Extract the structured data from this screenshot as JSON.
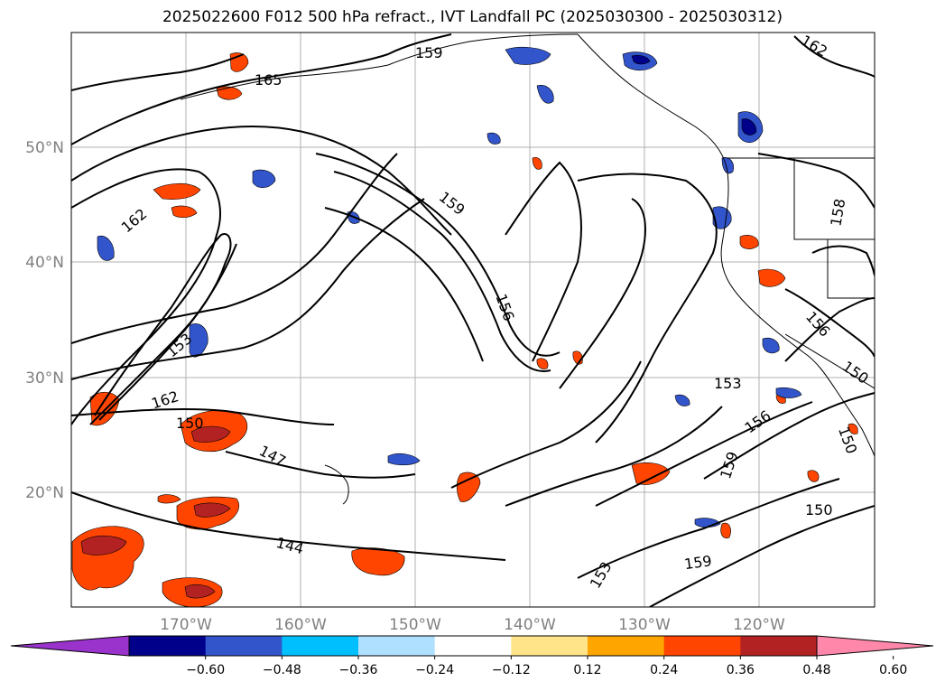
{
  "title": "2025022600 F012 500 hPa refract., IVT Landfall PC (2025030300 - 2025030312)",
  "lat_labels": [
    "50°N",
    "40°N",
    "30°N",
    "20°N"
  ],
  "lon_labels": [
    "170°W",
    "160°W",
    "150°W",
    "140°W",
    "130°W",
    "120°W"
  ],
  "contour_labels": [
    "165",
    "159",
    "162",
    "162",
    "159",
    "158",
    "153",
    "162",
    "156",
    "150",
    "156",
    "153",
    "150",
    "147",
    "156",
    "159",
    "150",
    "159",
    "150",
    "153",
    "144"
  ],
  "colorbar": {
    "colors": [
      "#9933cc",
      "#00008b",
      "#3355cc",
      "#00bfff",
      "#b0e0ff",
      "#ffffff",
      "#ffe48a",
      "#ffa500",
      "#ff4500",
      "#b22222",
      "#ff88aa"
    ],
    "tick_labels": [
      "−0.60",
      "−0.48",
      "−0.36",
      "−0.24",
      "−0.12",
      "0.12",
      "0.24",
      "0.36",
      "0.48",
      "0.60"
    ]
  }
}
